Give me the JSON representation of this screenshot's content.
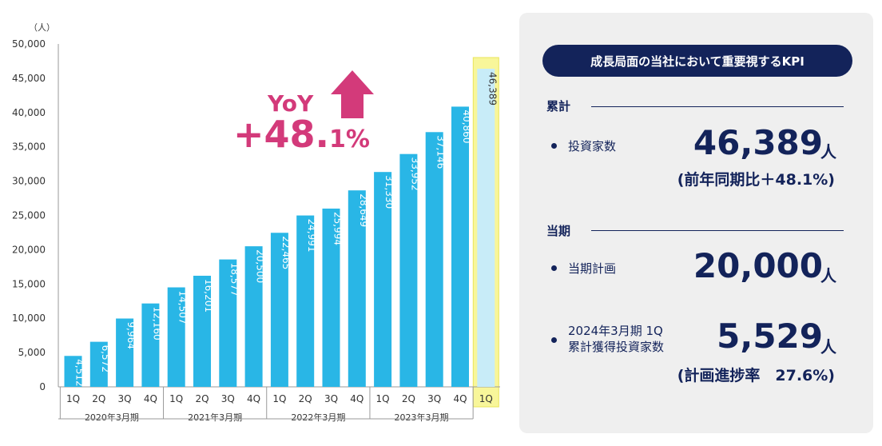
{
  "chart_data": {
    "type": "bar",
    "ylabel": "（人）",
    "ylim": [
      0,
      50000
    ],
    "yticks": [
      "0",
      "5,000",
      "10,000",
      "15,000",
      "20,000",
      "25,000",
      "30,000",
      "35,000",
      "40,000",
      "45,000",
      "50,000"
    ],
    "categories": [
      "1Q",
      "2Q",
      "3Q",
      "4Q",
      "1Q",
      "2Q",
      "3Q",
      "4Q",
      "1Q",
      "2Q",
      "3Q",
      "4Q",
      "1Q",
      "2Q",
      "3Q",
      "4Q",
      "1Q"
    ],
    "values": [
      4512,
      6572,
      9964,
      12160,
      14507,
      16201,
      18577,
      20500,
      22465,
      24991,
      25994,
      28649,
      31330,
      33952,
      37146,
      40860,
      46389
    ],
    "value_labels": [
      "4,512",
      "6,572",
      "9,964",
      "12,160",
      "14,507",
      "16,201",
      "18,577",
      "20,500",
      "22,465",
      "24,991",
      "25,994",
      "28,649",
      "31,330",
      "33,952",
      "37,146",
      "40,860",
      "46,389"
    ],
    "groups": [
      "2020年3月期",
      "2021年3月期",
      "2022年3月期",
      "2023年3月期"
    ],
    "highlight_index": 16,
    "colors": {
      "bar": "#29b6e6",
      "highlight_bar": "#c8ecf8",
      "highlight_bg": "#f8f69a",
      "highlight_border": "#eae45a",
      "arrow": "#d33a7a"
    }
  },
  "yoy": {
    "label": "YoY",
    "value_main": "+48.",
    "value_small": "1%"
  },
  "kpi": {
    "title": "成長局面の当社において重要視するKPI",
    "cumulative": {
      "heading": "累計",
      "item_label": "投資家数",
      "value": "46,389",
      "unit": "人",
      "sub": "(前年同期比＋48.1%)"
    },
    "current": {
      "heading": "当期",
      "plan_label": "当期計画",
      "plan_value": "20,000",
      "plan_unit": "人",
      "acq_label_line1": "2024年3月期 1Q",
      "acq_label_line2": "累計獲得投資家数",
      "acq_value": "5,529",
      "acq_unit": "人",
      "progress": "(計画進捗率　27.6%)"
    }
  }
}
